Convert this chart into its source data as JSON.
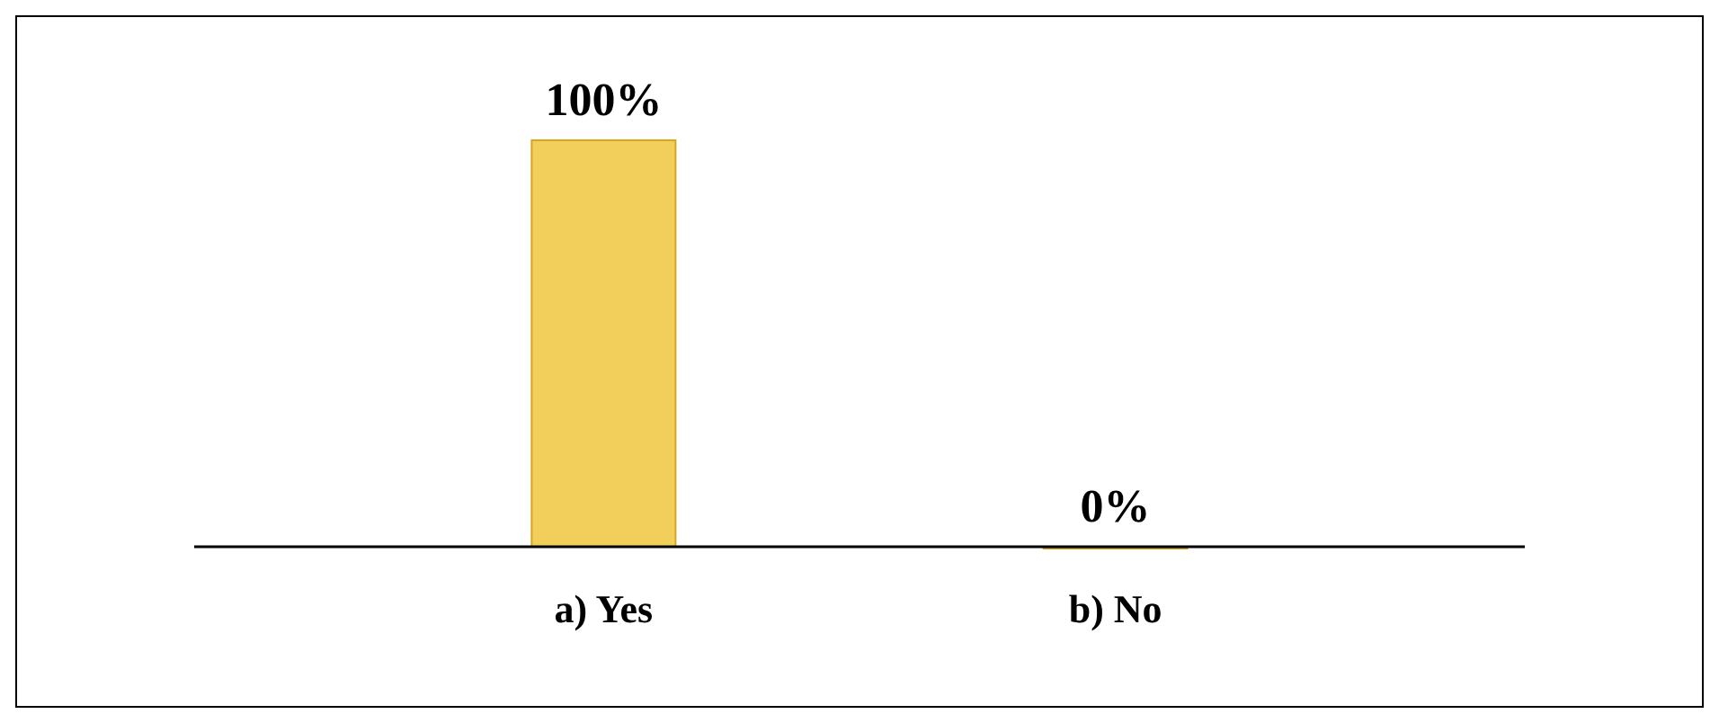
{
  "chart_data": {
    "type": "bar",
    "categories": [
      "a) Yes",
      "b) No"
    ],
    "values": [
      100,
      0
    ],
    "value_labels": [
      "100%",
      "0%"
    ],
    "color": "#f2cf5b",
    "ylim": [
      0,
      100
    ]
  }
}
